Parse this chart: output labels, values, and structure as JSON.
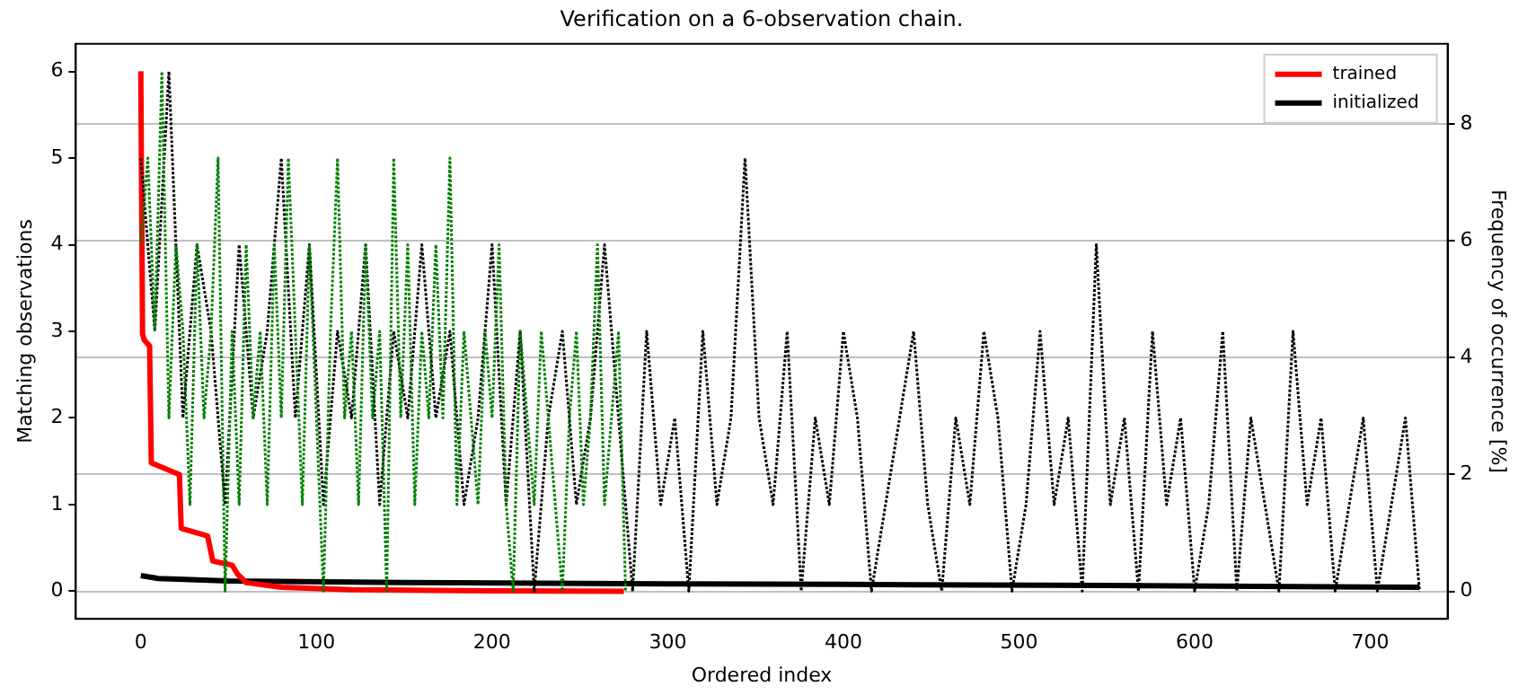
{
  "chart_data": {
    "type": "line",
    "title": "Verification on a 6-observation chain.",
    "xlabel": "Ordered index",
    "ylabel": "Matching observations",
    "y2label": "Frequency of occurrence [%]",
    "xlim": [
      -37,
      744
    ],
    "xticks": [
      0,
      100,
      200,
      300,
      400,
      500,
      600,
      700
    ],
    "ylim": [
      -0.32,
      6.32
    ],
    "yticks": [
      0,
      1,
      2,
      3,
      4,
      5,
      6
    ],
    "y2lim": [
      -0.47,
      9.37
    ],
    "y2ticks": [
      0,
      2,
      4,
      6,
      8
    ],
    "grid": "y",
    "legend": "top right",
    "marker": "none",
    "series": [
      {
        "color": "#008000",
        "line_style": "dotted",
        "x": [
          0,
          4,
          8,
          12,
          16,
          20,
          24,
          28,
          32,
          36,
          40,
          44,
          48,
          52,
          56,
          60,
          64,
          68,
          72,
          76,
          80,
          84,
          88,
          92,
          96,
          100,
          104,
          108,
          112,
          116,
          120,
          124,
          128,
          132,
          136,
          140,
          144,
          148,
          152,
          156,
          160,
          164,
          168,
          172,
          176,
          180,
          184,
          188,
          192,
          196,
          200,
          204,
          208,
          212,
          216,
          220,
          224,
          228,
          232,
          236,
          240,
          244,
          248,
          252,
          256,
          260,
          264,
          268,
          272,
          276
        ],
        "values": [
          4,
          5,
          3,
          6,
          2,
          4,
          3,
          1,
          4,
          2,
          3,
          5,
          0,
          3,
          1,
          4,
          2,
          3,
          1,
          4,
          2,
          5,
          3,
          1,
          4,
          2,
          0,
          3,
          5,
          2,
          3,
          1,
          4,
          2,
          3,
          0,
          5,
          2,
          4,
          1,
          3,
          2,
          4,
          2,
          5,
          1,
          3,
          2,
          1,
          3,
          2,
          4,
          1,
          0,
          3,
          2,
          1,
          3,
          2,
          1,
          0,
          2,
          3,
          1,
          2,
          4,
          1,
          2,
          3,
          0
        ]
      },
      {
        "color": "#000000",
        "line_style": "dotted",
        "x": [
          0,
          8,
          16,
          24,
          32,
          40,
          48,
          56,
          64,
          72,
          80,
          88,
          96,
          104,
          112,
          120,
          128,
          136,
          144,
          152,
          160,
          168,
          176,
          184,
          192,
          200,
          208,
          216,
          224,
          232,
          240,
          248,
          256,
          264,
          272,
          280,
          288,
          296,
          304,
          312,
          320,
          328,
          336,
          344,
          352,
          360,
          368,
          376,
          384,
          392,
          400,
          408,
          416,
          424,
          432,
          440,
          448,
          456,
          464,
          472,
          480,
          488,
          496,
          504,
          512,
          520,
          528,
          536,
          544,
          552,
          560,
          568,
          576,
          584,
          592,
          600,
          608,
          616,
          624,
          632,
          640,
          648,
          656,
          664,
          672,
          680,
          688,
          696,
          704,
          712,
          720,
          728
        ],
        "values": [
          5,
          3,
          6,
          2,
          4,
          3,
          1,
          4,
          2,
          3,
          5,
          2,
          4,
          1,
          3,
          2,
          4,
          1,
          3,
          2,
          4,
          2,
          3,
          1,
          2,
          4,
          1,
          3,
          0,
          2,
          3,
          1,
          2,
          4,
          2,
          0,
          3,
          1,
          2,
          0,
          3,
          1,
          2,
          5,
          2,
          1,
          3,
          0,
          2,
          1,
          3,
          2,
          0,
          1,
          2,
          3,
          1,
          0,
          2,
          1,
          3,
          2,
          0,
          1,
          3,
          1,
          2,
          0,
          4,
          1,
          2,
          0,
          3,
          1,
          2,
          0,
          1,
          3,
          0,
          2,
          1,
          0,
          3,
          1,
          2,
          0,
          1,
          2,
          0,
          1,
          2,
          0
        ]
      },
      {
        "name": "trained",
        "color": "#ff0000",
        "axis": "y2",
        "line_style": "solid",
        "x": [
          0,
          1,
          2,
          5,
          6,
          22,
          23,
          38,
          41,
          52,
          55,
          60,
          80,
          120,
          200,
          275
        ],
        "values": [
          8.9,
          4.4,
          4.3,
          4.2,
          2.2,
          2.0,
          1.08,
          0.95,
          0.52,
          0.45,
          0.3,
          0.15,
          0.07,
          0.03,
          0.01,
          0
        ]
      },
      {
        "name": "initialized",
        "color": "#000000",
        "axis": "y2",
        "line_style": "solid",
        "x": [
          0,
          10,
          50,
          150,
          300,
          400,
          550,
          728
        ],
        "values": [
          0.27,
          0.22,
          0.18,
          0.15,
          0.13,
          0.12,
          0.1,
          0.07
        ]
      }
    ]
  }
}
